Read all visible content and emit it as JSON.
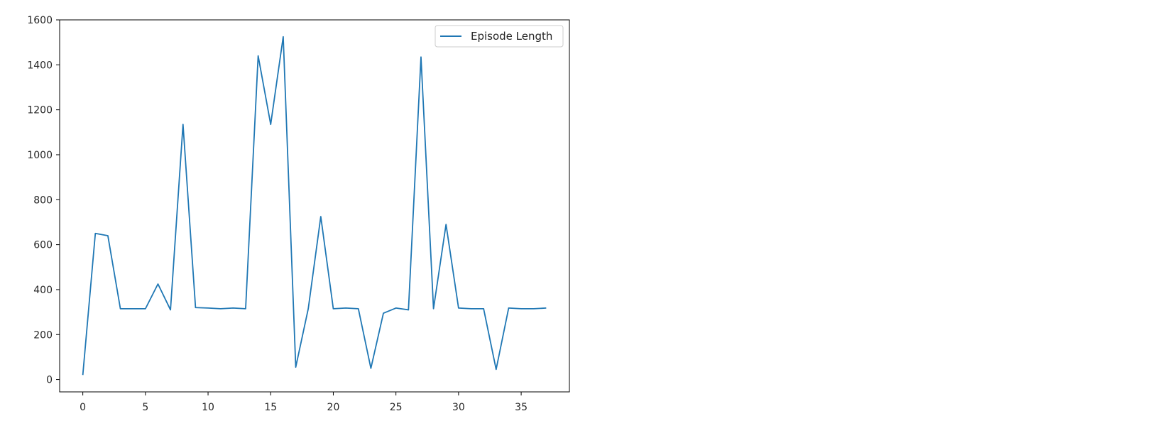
{
  "chart_data": {
    "type": "line",
    "title": "",
    "xlabel": "",
    "ylabel": "",
    "xlim": [
      -1.85,
      38.85
    ],
    "ylim": [
      -55,
      1600
    ],
    "x_ticks": [
      0,
      5,
      10,
      15,
      20,
      25,
      30,
      35
    ],
    "y_ticks": [
      0,
      200,
      400,
      600,
      800,
      1000,
      1200,
      1400,
      1600
    ],
    "grid": false,
    "legend_position": "top-right",
    "series": [
      {
        "name": "Episode Length",
        "color": "#1f77b4",
        "x": [
          0,
          1,
          2,
          3,
          4,
          5,
          6,
          7,
          8,
          9,
          10,
          11,
          12,
          13,
          14,
          15,
          16,
          17,
          18,
          19,
          20,
          21,
          22,
          23,
          24,
          25,
          26,
          27,
          28,
          29,
          30,
          31,
          32,
          33,
          34,
          35,
          36,
          37
        ],
        "values": [
          20,
          650,
          640,
          315,
          315,
          315,
          425,
          310,
          1135,
          320,
          318,
          315,
          318,
          315,
          1440,
          1135,
          1525,
          55,
          315,
          725,
          315,
          318,
          315,
          50,
          295,
          318,
          310,
          1435,
          315,
          690,
          318,
          315,
          315,
          45,
          318,
          315,
          315,
          318
        ]
      }
    ]
  }
}
